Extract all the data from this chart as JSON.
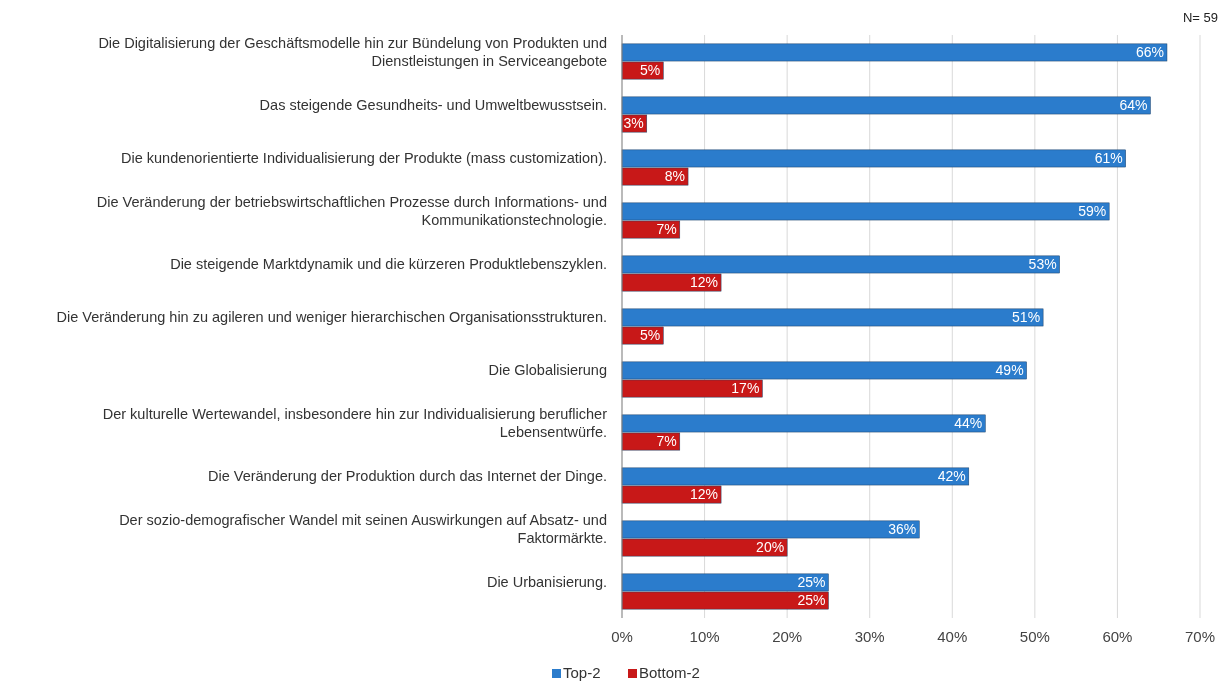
{
  "chart_data": {
    "type": "bar",
    "orientation": "horizontal",
    "categories": [
      "Die Digitalisierung der Geschäftsmodelle hin zur Bündelung von Produkten und Dienstleistungen in Serviceangebote",
      "Das steigende Gesundheits- und Umweltbewusstsein.",
      "Die kundenorientierte Individualisierung der Produkte (mass customization).",
      "Die Veränderung der betriebswirtschaftlichen Prozesse durch Informations- und Kommunikationstechnologie.",
      "Die steigende Marktdynamik und die kürzeren Produktlebenszyklen.",
      "Die Veränderung hin zu agileren und weniger hierarchischen Organisationsstrukturen.",
      "Die Globalisierung",
      "Der kulturelle Wertewandel, insbesondere hin zur Individualisierung beruflicher Lebensentwürfe.",
      "Die Veränderung der Produktion durch das Internet der Dinge.",
      "Der sozio-demografischer Wandel mit seinen Auswirkungen auf Absatz- und Faktormärkte.",
      "Die Urbanisierung."
    ],
    "series": [
      {
        "name": "Top-2",
        "color": "#2b7ccc",
        "values": [
          66,
          64,
          61,
          59,
          53,
          51,
          49,
          44,
          42,
          36,
          25
        ],
        "value_labels": [
          "66%",
          "64%",
          "61%",
          "59%",
          "53%",
          "51%",
          "49%",
          "44%",
          "42%",
          "36%",
          "25%"
        ]
      },
      {
        "name": "Bottom-2",
        "color": "#c81818",
        "values": [
          5,
          3,
          8,
          7,
          12,
          5,
          17,
          7,
          12,
          20,
          25
        ],
        "value_labels": [
          "5%",
          "3%",
          "8%",
          "7%",
          "12%",
          "5%",
          "17%",
          "7%",
          "12%",
          "20%",
          "25%"
        ]
      }
    ],
    "xlim": [
      0,
      70
    ],
    "xticks": [
      {
        "value": 0,
        "label": "0%"
      },
      {
        "value": 10,
        "label": "10%"
      },
      {
        "value": 20,
        "label": "20%"
      },
      {
        "value": 30,
        "label": "30%"
      },
      {
        "value": 40,
        "label": "40%"
      },
      {
        "value": 50,
        "label": "50%"
      },
      {
        "value": 60,
        "label": "60%"
      },
      {
        "value": 70,
        "label": "70%"
      }
    ],
    "grid": "x",
    "legend": "bottom",
    "annotations": [
      "N= 59"
    ]
  }
}
